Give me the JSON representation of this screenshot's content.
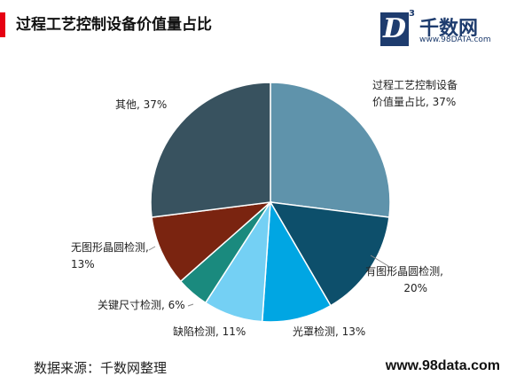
{
  "header": {
    "title": "过程工艺控制设备价值量占比"
  },
  "logo": {
    "badge_letter": "D",
    "badge_superscript": "3",
    "name": "千数网",
    "url": "www.98DATA.com"
  },
  "chart_data": {
    "type": "pie",
    "slices": [
      {
        "label_lines": [
          "过程工艺控制设备",
          "价值量占比, 37%"
        ],
        "value": 37,
        "color": "#5f93ab"
      },
      {
        "label_lines": [
          "有图形晶圆检测,",
          "20%"
        ],
        "value": 20,
        "color": "#0d4f6b"
      },
      {
        "label_lines": [
          "光罩检测, 13%"
        ],
        "value": 13,
        "color": "#00a6e3"
      },
      {
        "label_lines": [
          "缺陷检测, 11%"
        ],
        "value": 11,
        "color": "#74d0f4"
      },
      {
        "label_lines": [
          "关键尺寸检测, 6%"
        ],
        "value": 6,
        "color": "#1a8a7e"
      },
      {
        "label_lines": [
          "无图形晶圆检测,",
          "13%"
        ],
        "value": 13,
        "color": "#7a2410"
      },
      {
        "label_lines": [
          "其他, 37%"
        ],
        "value": 37,
        "color": "#38525f"
      }
    ]
  },
  "footer": {
    "source": "数据来源：千数网整理",
    "url": "www.98data.com"
  }
}
